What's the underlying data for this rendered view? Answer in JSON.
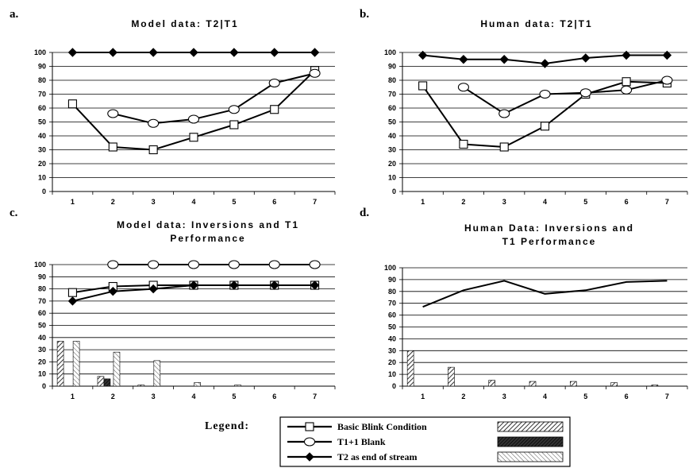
{
  "chart_data": [
    {
      "letter": "a.",
      "type": "line",
      "title": [
        "Model data:  T2|T1"
      ],
      "x": [
        1,
        2,
        3,
        4,
        5,
        6,
        7
      ],
      "ylim": [
        0,
        100
      ],
      "yticks": [
        0,
        10,
        20,
        30,
        40,
        50,
        60,
        70,
        80,
        90,
        100
      ],
      "grid": true,
      "series": [
        {
          "key": "basic",
          "values": [
            63,
            32,
            30,
            39,
            48,
            59,
            87
          ]
        },
        {
          "key": "t1blank",
          "values": [
            null,
            56,
            49,
            52,
            59,
            78,
            85
          ]
        },
        {
          "key": "t2end",
          "values": [
            100,
            100,
            100,
            100,
            100,
            100,
            100
          ]
        }
      ],
      "bars": []
    },
    {
      "letter": "b.",
      "type": "line",
      "title": [
        "Human data:  T2|T1"
      ],
      "x": [
        1,
        2,
        3,
        4,
        5,
        6,
        7
      ],
      "ylim": [
        0,
        100
      ],
      "yticks": [
        0,
        10,
        20,
        30,
        40,
        50,
        60,
        70,
        80,
        90,
        100
      ],
      "grid": true,
      "series": [
        {
          "key": "basic",
          "values": [
            76,
            34,
            32,
            47,
            70,
            79,
            78
          ]
        },
        {
          "key": "t1blank",
          "values": [
            null,
            75,
            56,
            70,
            71,
            73,
            80
          ]
        },
        {
          "key": "t2end",
          "values": [
            98,
            95,
            95,
            92,
            96,
            98,
            98
          ]
        }
      ],
      "bars": []
    },
    {
      "letter": "c.",
      "type": "bar+line",
      "title": [
        "Model data: Inversions and T1",
        "Performance"
      ],
      "x": [
        1,
        2,
        3,
        4,
        5,
        6,
        7
      ],
      "ylim": [
        0,
        100
      ],
      "yticks": [
        0,
        10,
        20,
        30,
        40,
        50,
        60,
        70,
        80,
        90,
        100
      ],
      "grid": true,
      "series": [
        {
          "key": "basic",
          "values": [
            77,
            82,
            83,
            83,
            83,
            83,
            83
          ]
        },
        {
          "key": "t1blank",
          "values": [
            null,
            100,
            100,
            100,
            100,
            100,
            100
          ]
        },
        {
          "key": "t2end",
          "values": [
            70,
            78,
            80,
            83,
            83,
            83,
            83
          ]
        }
      ],
      "bars": [
        {
          "key": "basic",
          "values": [
            37,
            8,
            1,
            0,
            0,
            0,
            0
          ]
        },
        {
          "key": "t1blank",
          "values": [
            0,
            6,
            0,
            0,
            0,
            0,
            0
          ]
        },
        {
          "key": "t2end",
          "values": [
            37,
            28,
            21,
            3,
            1,
            0,
            0
          ]
        }
      ]
    },
    {
      "letter": "d.",
      "type": "bar+line",
      "title": [
        "Human Data: Inversions and",
        "T1 Performance"
      ],
      "x": [
        1,
        2,
        3,
        4,
        5,
        6,
        7
      ],
      "ylim": [
        0,
        100
      ],
      "yticks": [
        0,
        10,
        20,
        30,
        40,
        50,
        60,
        70,
        80,
        90,
        100
      ],
      "grid": true,
      "series": [
        {
          "key": "plain",
          "values": [
            67,
            81,
            89,
            78,
            81,
            88,
            89
          ]
        }
      ],
      "bars": [
        {
          "key": "basic",
          "values": [
            30,
            16,
            5,
            4,
            4,
            3,
            1
          ]
        }
      ]
    }
  ],
  "legend": {
    "title": "Legend:",
    "entries": [
      {
        "key": "basic",
        "label": "Basic Blink Condition"
      },
      {
        "key": "t1blank",
        "label": "T1+1 Blank"
      },
      {
        "key": "t2end",
        "label": "T2 as end of stream"
      }
    ]
  },
  "colors": {
    "line": "#000000",
    "grid": "#000000",
    "bar_basic_fill": "#b8b8b8",
    "bar_t1blank_fill": "#3a3a3a",
    "bar_t2end_fill": "#e6e6e6"
  }
}
